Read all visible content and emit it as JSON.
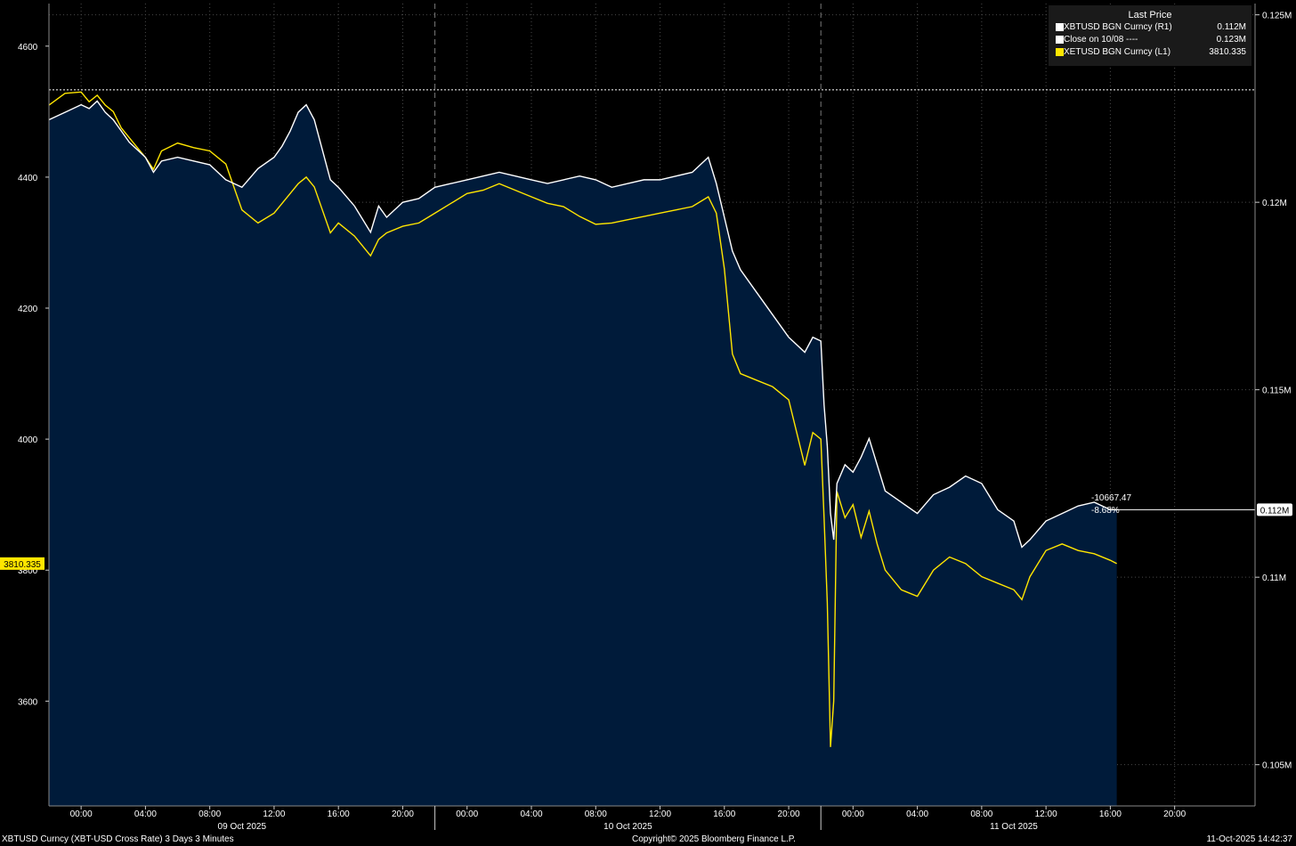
{
  "legend": {
    "title": "Last Price",
    "items": [
      {
        "name": "XBTUSD BGN Curncy  (R1)",
        "value": "0.112M",
        "color": "#ffffff"
      },
      {
        "name": "Close on 10/08 ----",
        "value": "0.123M",
        "color": "#ffffff"
      },
      {
        "name": "XETUSD BGN Curncy  (L1)",
        "value": "3810.335",
        "color": "#ffe600"
      }
    ]
  },
  "readout": {
    "change": "-10667.47",
    "percent": "-8.68%"
  },
  "footer": {
    "left": "XBTUSD Curncy (XBT-USD Cross Rate) 3 Days 3 Minutes",
    "center": "Copyright© 2025 Bloomberg Finance L.P.",
    "right": "11-Oct-2025 14:42:37"
  },
  "colors": {
    "background": "#000000",
    "fill": "#001b3a",
    "btc": "#ffffff",
    "eth": "#ffe600",
    "grid": "#4a4a4a"
  },
  "chart_data": {
    "type": "line",
    "x_unit": "hours since 09 Oct 2025 00:00",
    "x_ticks": [
      {
        "h": -24,
        "label": ""
      },
      {
        "h": 0,
        "label": "00:00"
      },
      {
        "h": 4,
        "label": "04:00"
      },
      {
        "h": 8,
        "label": "08:00"
      },
      {
        "h": 12,
        "label": "12:00"
      },
      {
        "h": 16,
        "label": "16:00"
      },
      {
        "h": 20,
        "label": "20:00"
      },
      {
        "h": 24,
        "label": "00:00"
      },
      {
        "h": 28,
        "label": "04:00"
      },
      {
        "h": 32,
        "label": "08:00"
      },
      {
        "h": 36,
        "label": "12:00"
      },
      {
        "h": 40,
        "label": "16:00"
      },
      {
        "h": 44,
        "label": "20:00"
      },
      {
        "h": 48,
        "label": "00:00"
      },
      {
        "h": 52,
        "label": "04:00"
      },
      {
        "h": 56,
        "label": "08:00"
      },
      {
        "h": 60,
        "label": "12:00"
      },
      {
        "h": 64,
        "label": "16:00"
      },
      {
        "h": 68,
        "label": "20:00"
      }
    ],
    "date_labels": [
      {
        "h": 10,
        "label": "09 Oct 2025"
      },
      {
        "h": 34,
        "label": "10 Oct 2025"
      },
      {
        "h": 58,
        "label": "11 Oct 2025"
      }
    ],
    "day_separators": [
      22,
      46
    ],
    "xlim": [
      -2,
      73
    ],
    "left_axis": {
      "ticks": [
        3600,
        3800,
        4000,
        4200,
        4400,
        4600
      ],
      "ylim": [
        3440,
        4665
      ]
    },
    "right_axis": {
      "ticks": [
        0.105,
        0.11,
        0.115,
        0.12,
        0.125
      ],
      "tick_labels": [
        "0.105M",
        "0.11M",
        "0.115M",
        "0.12M",
        "0.125M"
      ],
      "ylim": [
        0.1039,
        0.1253
      ],
      "reference": 0.123,
      "last_label": "0.112M"
    },
    "left_last_label": "3810.335",
    "series": [
      {
        "name": "XBTUSD BGN Curncy (R1)",
        "axis": "right",
        "points": [
          [
            -2,
            0.1222
          ],
          [
            -1,
            0.1224
          ],
          [
            0,
            0.1226
          ],
          [
            0.5,
            0.1225
          ],
          [
            1,
            0.1227
          ],
          [
            1.5,
            0.1224
          ],
          [
            2,
            0.1222
          ],
          [
            2.5,
            0.1219
          ],
          [
            3,
            0.1216
          ],
          [
            3.5,
            0.1214
          ],
          [
            4,
            0.1212
          ],
          [
            4.5,
            0.1208
          ],
          [
            5,
            0.1211
          ],
          [
            6,
            0.1212
          ],
          [
            7,
            0.1211
          ],
          [
            8,
            0.121
          ],
          [
            9,
            0.1206
          ],
          [
            10,
            0.1204
          ],
          [
            11,
            0.1209
          ],
          [
            12,
            0.1212
          ],
          [
            12.5,
            0.1215
          ],
          [
            13,
            0.1219
          ],
          [
            13.5,
            0.1224
          ],
          [
            14,
            0.1226
          ],
          [
            14.5,
            0.1222
          ],
          [
            15,
            0.1214
          ],
          [
            15.5,
            0.1206
          ],
          [
            16,
            0.1204
          ],
          [
            17,
            0.1199
          ],
          [
            18,
            0.1192
          ],
          [
            18.5,
            0.1199
          ],
          [
            19,
            0.1196
          ],
          [
            20,
            0.12
          ],
          [
            21,
            0.1201
          ],
          [
            22,
            0.1204
          ],
          [
            23,
            0.1205
          ],
          [
            24,
            0.1206
          ],
          [
            25,
            0.1207
          ],
          [
            26,
            0.1208
          ],
          [
            27,
            0.1207
          ],
          [
            28,
            0.1206
          ],
          [
            29,
            0.1205
          ],
          [
            30,
            0.1206
          ],
          [
            31,
            0.1207
          ],
          [
            32,
            0.1206
          ],
          [
            33,
            0.1204
          ],
          [
            34,
            0.1205
          ],
          [
            35,
            0.1206
          ],
          [
            36,
            0.1206
          ],
          [
            37,
            0.1207
          ],
          [
            38,
            0.1208
          ],
          [
            39,
            0.1212
          ],
          [
            39.5,
            0.1205
          ],
          [
            40,
            0.1196
          ],
          [
            40.5,
            0.1187
          ],
          [
            41,
            0.1182
          ],
          [
            42,
            0.1176
          ],
          [
            43,
            0.117
          ],
          [
            44,
            0.1164
          ],
          [
            45,
            0.116
          ],
          [
            45.5,
            0.1164
          ],
          [
            46,
            0.1163
          ],
          [
            46.2,
            0.1146
          ],
          [
            46.4,
            0.1135
          ],
          [
            46.6,
            0.1117
          ],
          [
            46.8,
            0.111
          ],
          [
            47,
            0.1125
          ],
          [
            47.5,
            0.113
          ],
          [
            48,
            0.1128
          ],
          [
            48.5,
            0.1132
          ],
          [
            49,
            0.1137
          ],
          [
            49.5,
            0.113
          ],
          [
            50,
            0.1123
          ],
          [
            51,
            0.112
          ],
          [
            52,
            0.1117
          ],
          [
            53,
            0.1122
          ],
          [
            54,
            0.1124
          ],
          [
            55,
            0.1127
          ],
          [
            56,
            0.1125
          ],
          [
            57,
            0.1118
          ],
          [
            58,
            0.1115
          ],
          [
            58.5,
            0.1108
          ],
          [
            59,
            0.111
          ],
          [
            60,
            0.1115
          ],
          [
            61,
            0.1117
          ],
          [
            62,
            0.1119
          ],
          [
            63,
            0.112
          ],
          [
            64,
            0.1118
          ],
          [
            64.4,
            0.1118
          ]
        ]
      },
      {
        "name": "XETUSD BGN Curncy (L1)",
        "axis": "left",
        "points": [
          [
            -2,
            4510
          ],
          [
            -1,
            4528
          ],
          [
            0,
            4530
          ],
          [
            0.5,
            4515
          ],
          [
            1,
            4525
          ],
          [
            1.5,
            4510
          ],
          [
            2,
            4500
          ],
          [
            2.5,
            4475
          ],
          [
            3,
            4460
          ],
          [
            3.5,
            4445
          ],
          [
            4,
            4430
          ],
          [
            4.5,
            4412
          ],
          [
            5,
            4440
          ],
          [
            6,
            4452
          ],
          [
            7,
            4445
          ],
          [
            8,
            4440
          ],
          [
            9,
            4420
          ],
          [
            10,
            4350
          ],
          [
            11,
            4330
          ],
          [
            12,
            4345
          ],
          [
            12.5,
            4360
          ],
          [
            13,
            4375
          ],
          [
            13.5,
            4390
          ],
          [
            14,
            4400
          ],
          [
            14.5,
            4385
          ],
          [
            15,
            4350
          ],
          [
            15.5,
            4315
          ],
          [
            16,
            4330
          ],
          [
            17,
            4310
          ],
          [
            18,
            4280
          ],
          [
            18.5,
            4305
          ],
          [
            19,
            4315
          ],
          [
            20,
            4325
          ],
          [
            21,
            4330
          ],
          [
            22,
            4345
          ],
          [
            23,
            4360
          ],
          [
            24,
            4375
          ],
          [
            25,
            4380
          ],
          [
            26,
            4390
          ],
          [
            27,
            4380
          ],
          [
            28,
            4370
          ],
          [
            29,
            4360
          ],
          [
            30,
            4355
          ],
          [
            31,
            4340
          ],
          [
            32,
            4328
          ],
          [
            33,
            4330
          ],
          [
            34,
            4335
          ],
          [
            35,
            4340
          ],
          [
            36,
            4345
          ],
          [
            37,
            4350
          ],
          [
            38,
            4355
          ],
          [
            39,
            4370
          ],
          [
            39.5,
            4345
          ],
          [
            40,
            4260
          ],
          [
            40.5,
            4130
          ],
          [
            41,
            4100
          ],
          [
            42,
            4090
          ],
          [
            43,
            4080
          ],
          [
            44,
            4060
          ],
          [
            45,
            3960
          ],
          [
            45.5,
            4010
          ],
          [
            46,
            4000
          ],
          [
            46.2,
            3880
          ],
          [
            46.4,
            3750
          ],
          [
            46.6,
            3530
          ],
          [
            46.8,
            3600
          ],
          [
            47,
            3920
          ],
          [
            47.5,
            3880
          ],
          [
            48,
            3900
          ],
          [
            48.5,
            3850
          ],
          [
            49,
            3890
          ],
          [
            49.5,
            3840
          ],
          [
            50,
            3800
          ],
          [
            51,
            3770
          ],
          [
            52,
            3760
          ],
          [
            53,
            3800
          ],
          [
            54,
            3820
          ],
          [
            55,
            3810
          ],
          [
            56,
            3790
          ],
          [
            57,
            3780
          ],
          [
            58,
            3770
          ],
          [
            58.5,
            3755
          ],
          [
            59,
            3790
          ],
          [
            60,
            3830
          ],
          [
            61,
            3840
          ],
          [
            62,
            3830
          ],
          [
            63,
            3825
          ],
          [
            64,
            3815
          ],
          [
            64.4,
            3810
          ]
        ]
      }
    ]
  }
}
